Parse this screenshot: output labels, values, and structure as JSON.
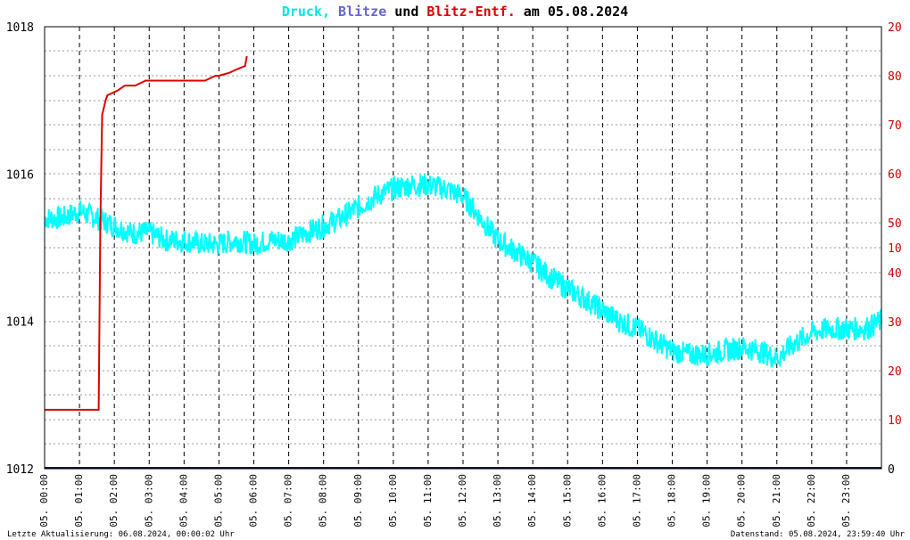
{
  "title": {
    "parts": [
      {
        "text": "Druck,",
        "color": "#00e5e5"
      },
      {
        "text": "Blitze",
        "color": "#6666cc"
      },
      {
        "text": "und",
        "color": "#000000"
      },
      {
        "text": "Blitz-Entf.",
        "color": "#dd0000"
      },
      {
        "text": "am 05.08.2024",
        "color": "#000000"
      }
    ]
  },
  "footer": {
    "left": "Letzte Aktualisierung: 06.08.2024, 00:00:02 Uhr",
    "right": "Datenstand: 05.08.2024, 23:59:40 Uhr"
  },
  "colors": {
    "pressure": "#00ffff",
    "distance": "#dd0000",
    "lightning": "#000066",
    "grid": "#000000",
    "right_axis_text": "#cc0000"
  },
  "chart_data": {
    "type": "line",
    "x_tick_labels": [
      "05. 00:00",
      "05. 01:00",
      "05. 02:00",
      "05. 03:00",
      "05. 04:00",
      "05. 05:00",
      "05. 06:00",
      "05. 07:00",
      "05. 08:00",
      "05. 09:00",
      "05. 10:00",
      "05. 11:00",
      "05. 12:00",
      "05. 13:00",
      "05. 14:00",
      "05. 15:00",
      "05. 16:00",
      "05. 17:00",
      "05. 18:00",
      "05. 19:00",
      "05. 20:00",
      "05. 21:00",
      "05. 22:00",
      "05. 23:00"
    ],
    "xlim_hours": [
      0,
      24
    ],
    "left_axis": {
      "ylim": [
        1012,
        1018
      ],
      "ticks": [
        "1012",
        "1014",
        "1016",
        "1018"
      ]
    },
    "right_axis_upper": {
      "range": [
        10,
        80
      ],
      "ticks": [
        "20",
        "80",
        "70",
        "60",
        "50"
      ]
    },
    "right_axis_lower": {
      "range": [
        0,
        50
      ],
      "ticks": [
        "10",
        "40",
        "30",
        "20",
        "10",
        "0"
      ]
    },
    "series": [
      {
        "name": "Druck",
        "axis": "left",
        "x": [
          0,
          0.5,
          1,
          1.5,
          2,
          2.5,
          3,
          3.5,
          4,
          4.5,
          5,
          5.5,
          6,
          6.5,
          7,
          7.5,
          8,
          8.5,
          9,
          9.5,
          10,
          10.5,
          11,
          11.5,
          12,
          12.5,
          13,
          13.5,
          14,
          14.5,
          15,
          15.5,
          16,
          16.5,
          17,
          17.5,
          18,
          18.5,
          19,
          19.5,
          20,
          20.5,
          21,
          21.5,
          22,
          22.5,
          23,
          23.5,
          24
        ],
        "y": [
          1015.4,
          1015.4,
          1015.5,
          1015.4,
          1015.3,
          1015.2,
          1015.2,
          1015.1,
          1015.1,
          1015.05,
          1015.05,
          1015.1,
          1015.05,
          1015.1,
          1015.1,
          1015.2,
          1015.3,
          1015.4,
          1015.55,
          1015.7,
          1015.8,
          1015.85,
          1015.85,
          1015.8,
          1015.7,
          1015.4,
          1015.1,
          1014.95,
          1014.8,
          1014.6,
          1014.45,
          1014.3,
          1014.15,
          1014.0,
          1013.9,
          1013.75,
          1013.6,
          1013.55,
          1013.55,
          1013.6,
          1013.65,
          1013.6,
          1013.5,
          1013.7,
          1013.85,
          1013.9,
          1013.9,
          1013.9,
          1014.0
        ]
      },
      {
        "name": "Blitz-Entf.",
        "axis": "right",
        "x": [
          0,
          1.55,
          1.6,
          1.65,
          1.75,
          1.8,
          2.1,
          2.3,
          2.6,
          2.9,
          3,
          3.8,
          4.2,
          4.4,
          4.6,
          4.9,
          5,
          5.3,
          5.5,
          5.75,
          5.8
        ],
        "y": [
          12,
          12,
          50,
          72,
          75,
          76,
          77,
          78,
          78,
          79,
          79,
          79,
          79,
          79,
          79,
          80,
          80,
          80.6,
          81.3,
          82,
          84
        ]
      },
      {
        "name": "Blitze",
        "axis": "right",
        "x": [
          0,
          24
        ],
        "y": [
          0,
          0
        ]
      }
    ]
  }
}
